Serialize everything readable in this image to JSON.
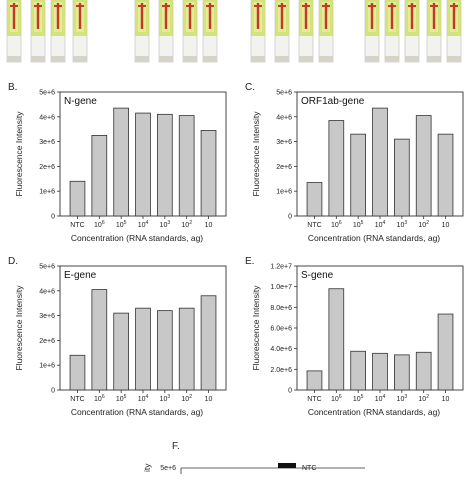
{
  "panel_labels": [
    "B.",
    "C.",
    "D.",
    "E.",
    "F."
  ],
  "chart_data": [
    {
      "type": "bar",
      "panel": "B.",
      "title": "N-gene",
      "categories": [
        "NTC",
        "10^6",
        "10^5",
        "10^4",
        "10^3",
        "10^2",
        "10"
      ],
      "category_labels": [
        {
          "base": "NTC",
          "exp": ""
        },
        {
          "base": "10",
          "exp": "6"
        },
        {
          "base": "10",
          "exp": "5"
        },
        {
          "base": "10",
          "exp": "4"
        },
        {
          "base": "10",
          "exp": "3"
        },
        {
          "base": "10",
          "exp": "2"
        },
        {
          "base": "10",
          "exp": ""
        }
      ],
      "values": [
        1400000,
        3250000,
        4350000,
        4150000,
        4100000,
        4050000,
        3450000
      ],
      "ylim": [
        0,
        5000000
      ],
      "yticks": [
        0,
        1000000,
        2000000,
        3000000,
        4000000,
        5000000
      ],
      "ytick_labels": [
        "0",
        "1e+6",
        "2e+6",
        "3e+6",
        "4e+6",
        "5e+6"
      ],
      "ylabel": "Fluorescence Intensity",
      "xlabel": "Concentration (RNA standards, ag)"
    },
    {
      "type": "bar",
      "panel": "C.",
      "title": "ORF1ab-gene",
      "categories": [
        "NTC",
        "10^6",
        "10^5",
        "10^4",
        "10^3",
        "10^2",
        "10"
      ],
      "category_labels": [
        {
          "base": "NTC",
          "exp": ""
        },
        {
          "base": "10",
          "exp": "6"
        },
        {
          "base": "10",
          "exp": "5"
        },
        {
          "base": "10",
          "exp": "4"
        },
        {
          "base": "10",
          "exp": "3"
        },
        {
          "base": "10",
          "exp": "2"
        },
        {
          "base": "10",
          "exp": ""
        }
      ],
      "values": [
        1350000,
        3850000,
        3300000,
        4350000,
        3100000,
        4050000,
        3300000
      ],
      "ylim": [
        0,
        5000000
      ],
      "yticks": [
        0,
        1000000,
        2000000,
        3000000,
        4000000,
        5000000
      ],
      "ytick_labels": [
        "0",
        "1e+6",
        "2e+6",
        "3e+6",
        "4e+6",
        "5e+6"
      ],
      "ylabel": "Fluorescence Intensity",
      "xlabel": "Concentration (RNA standards, ag)"
    },
    {
      "type": "bar",
      "panel": "D.",
      "title": "E-gene",
      "categories": [
        "NTC",
        "10^6",
        "10^5",
        "10^4",
        "10^3",
        "10^2",
        "10"
      ],
      "category_labels": [
        {
          "base": "NTC",
          "exp": ""
        },
        {
          "base": "10",
          "exp": "6"
        },
        {
          "base": "10",
          "exp": "5"
        },
        {
          "base": "10",
          "exp": "4"
        },
        {
          "base": "10",
          "exp": "3"
        },
        {
          "base": "10",
          "exp": "2"
        },
        {
          "base": "10",
          "exp": ""
        }
      ],
      "values": [
        1400000,
        4050000,
        3100000,
        3300000,
        3200000,
        3300000,
        3800000
      ],
      "ylim": [
        0,
        5000000
      ],
      "yticks": [
        0,
        1000000,
        2000000,
        3000000,
        4000000,
        5000000
      ],
      "ytick_labels": [
        "0",
        "1e+6",
        "2e+6",
        "3e+6",
        "4e+6",
        "5e+6"
      ],
      "ylabel": "Fluorescence Intensity",
      "xlabel": "Concentration (RNA standards, ag)"
    },
    {
      "type": "bar",
      "panel": "E.",
      "title": "S-gene",
      "categories": [
        "NTC",
        "10^6",
        "10^5",
        "10^4",
        "10^3",
        "10^2",
        "10"
      ],
      "category_labels": [
        {
          "base": "NTC",
          "exp": ""
        },
        {
          "base": "10",
          "exp": "6"
        },
        {
          "base": "10",
          "exp": "5"
        },
        {
          "base": "10",
          "exp": "4"
        },
        {
          "base": "10",
          "exp": "3"
        },
        {
          "base": "10",
          "exp": "2"
        },
        {
          "base": "10",
          "exp": ""
        }
      ],
      "values": [
        1850000,
        9800000,
        3750000,
        3550000,
        3400000,
        3650000,
        7350000
      ],
      "ylim": [
        0,
        12000000
      ],
      "yticks": [
        0,
        2000000,
        4000000,
        6000000,
        8000000,
        10000000,
        12000000
      ],
      "ytick_labels": [
        "0",
        "2.0e+6",
        "4.0e+6",
        "6.0e+6",
        "8.0e+6",
        "1.0e+7",
        "1.2e+7"
      ],
      "ylabel": "Fluorescence Intensity",
      "xlabel": "Concentration (RNA standards, ag)"
    }
  ],
  "panel_f": {
    "label": "F.",
    "ytick_top": "5e+6",
    "ylabel_fragment": "ity",
    "legend_entry": "NTC"
  },
  "colors": {
    "bar_fill": "#c8c8c8",
    "bar_stroke": "#333333",
    "strip_green": "#cfe06a",
    "strip_red": "#c0392b",
    "strip_body": "#f2f2ee"
  }
}
